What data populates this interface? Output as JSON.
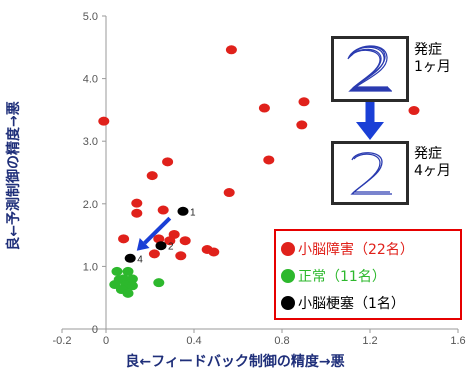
{
  "chart_data": {
    "type": "scatter",
    "title": "",
    "xlabel": "良←フィードバック制御の精度→悪",
    "ylabel": "良←予測制御の精度→悪",
    "xlim": [
      -0.2,
      1.6
    ],
    "ylim": [
      0.0,
      5.0
    ],
    "xticks": [
      -0.2,
      0,
      0.4,
      0.8,
      1.2,
      1.6
    ],
    "xtick_labels": [
      "-0.2",
      "0",
      "0.4",
      "0.8",
      "1.2",
      "1.6"
    ],
    "yticks": [
      0,
      1.0,
      2.0,
      3.0,
      4.0,
      5.0
    ],
    "ytick_labels": [
      "0",
      "1.0",
      "2.0",
      "3.0",
      "4.0",
      "5.0"
    ],
    "grid": false,
    "legend_position": "bottom-right",
    "series": [
      {
        "name": "小脳障害（22名）",
        "color": "#e0211b",
        "points": [
          {
            "x": -0.01,
            "y": 3.32
          },
          {
            "x": 0.08,
            "y": 1.44
          },
          {
            "x": 0.14,
            "y": 2.01
          },
          {
            "x": 0.14,
            "y": 1.85
          },
          {
            "x": 0.21,
            "y": 2.45
          },
          {
            "x": 0.28,
            "y": 2.67
          },
          {
            "x": 0.26,
            "y": 1.9
          },
          {
            "x": 0.31,
            "y": 1.51
          },
          {
            "x": 0.24,
            "y": 1.44
          },
          {
            "x": 0.29,
            "y": 1.41
          },
          {
            "x": 0.36,
            "y": 1.41
          },
          {
            "x": 0.34,
            "y": 1.17
          },
          {
            "x": 0.22,
            "y": 1.2
          },
          {
            "x": 0.46,
            "y": 1.27
          },
          {
            "x": 0.49,
            "y": 1.23
          },
          {
            "x": 0.57,
            "y": 4.46
          },
          {
            "x": 0.56,
            "y": 2.18
          },
          {
            "x": 0.72,
            "y": 3.53
          },
          {
            "x": 0.74,
            "y": 2.7
          },
          {
            "x": 0.89,
            "y": 3.26
          },
          {
            "x": 0.9,
            "y": 3.63
          },
          {
            "x": 1.4,
            "y": 3.49
          }
        ]
      },
      {
        "name": "正常（11名）",
        "color": "#2db82d",
        "points": [
          {
            "x": 0.05,
            "y": 0.92
          },
          {
            "x": 0.1,
            "y": 0.92
          },
          {
            "x": 0.06,
            "y": 0.79
          },
          {
            "x": 0.08,
            "y": 0.8
          },
          {
            "x": 0.12,
            "y": 0.8
          },
          {
            "x": 0.04,
            "y": 0.71
          },
          {
            "x": 0.09,
            "y": 0.7
          },
          {
            "x": 0.12,
            "y": 0.69
          },
          {
            "x": 0.07,
            "y": 0.63
          },
          {
            "x": 0.1,
            "y": 0.57
          },
          {
            "x": 0.24,
            "y": 0.74
          }
        ]
      },
      {
        "name": "小脳梗塞（1名）",
        "color": "#000000",
        "points": [
          {
            "x": 0.35,
            "y": 1.88,
            "label": "1"
          },
          {
            "x": 0.25,
            "y": 1.33,
            "label": "2"
          },
          {
            "x": 0.11,
            "y": 1.13,
            "label": "4"
          }
        ]
      }
    ],
    "annotations": [
      {
        "type": "arrow",
        "color": "#1a3fd6",
        "from": {
          "x": 0.29,
          "y": 1.77
        },
        "to": {
          "x": 0.14,
          "y": 1.25
        }
      }
    ]
  },
  "side_panel": {
    "top_label_line1": "発症",
    "top_label_line2": "1ヶ月",
    "bottom_label_line1": "発症",
    "bottom_label_line2": "4ヶ月",
    "thumbnail_glyph": "2",
    "arrow_color": "#1a3fd6"
  }
}
